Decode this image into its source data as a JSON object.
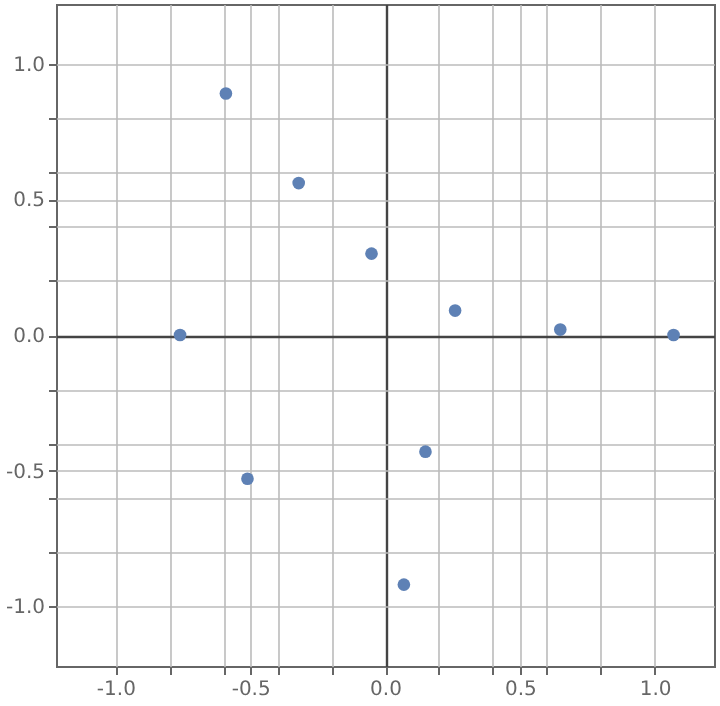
{
  "chart_data": {
    "type": "scatter",
    "x": [
      -0.76,
      -0.59,
      -0.32,
      -0.05,
      0.26,
      0.65,
      1.07,
      -0.51,
      0.15,
      0.07
    ],
    "series": [
      {
        "color": "#5e81b5",
        "values": [
          0.0,
          0.89,
          0.56,
          0.3,
          0.09,
          0.02,
          0.0,
          -0.53,
          -0.43,
          -0.92
        ]
      }
    ],
    "xlim": [
      -1.22,
      1.22
    ],
    "ylim": [
      -1.22,
      1.22
    ],
    "xticks": [
      {
        "value": -1,
        "label": "-1.0"
      },
      {
        "value": -0.8,
        "label": null
      },
      {
        "value": -0.6,
        "label": null
      },
      {
        "value": -0.5,
        "label": "-0.5"
      },
      {
        "value": -0.4,
        "label": null
      },
      {
        "value": -0.2,
        "label": null
      },
      {
        "value": 0,
        "label": "0.0"
      },
      {
        "value": 0.2,
        "label": null
      },
      {
        "value": 0.4,
        "label": null
      },
      {
        "value": 0.5,
        "label": "0.5"
      },
      {
        "value": 0.6,
        "label": null
      },
      {
        "value": 0.8,
        "label": null
      },
      {
        "value": 1,
        "label": "1.0"
      }
    ],
    "yticks": [
      {
        "value": -1,
        "label": "-1.0"
      },
      {
        "value": -0.8,
        "label": null
      },
      {
        "value": -0.6,
        "label": null
      },
      {
        "value": -0.5,
        "label": "-0.5"
      },
      {
        "value": -0.4,
        "label": null
      },
      {
        "value": -0.2,
        "label": null
      },
      {
        "value": 0,
        "label": "0.0"
      },
      {
        "value": 0.2,
        "label": null
      },
      {
        "value": 0.4,
        "label": null
      },
      {
        "value": 0.5,
        "label": "0.5"
      },
      {
        "value": 0.6,
        "label": null
      },
      {
        "value": 0.8,
        "label": null
      },
      {
        "value": 1,
        "label": "1.0"
      }
    ],
    "grid": true,
    "marker": "circle"
  }
}
